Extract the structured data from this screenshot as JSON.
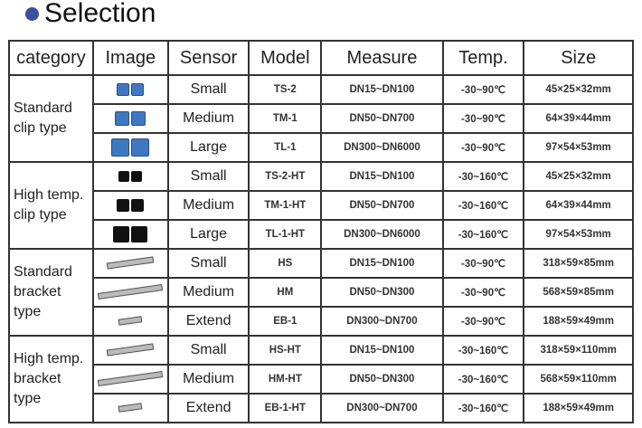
{
  "title": "Selection",
  "accent": "#3a4fa0",
  "headers": [
    "category",
    "Image",
    "Sensor",
    "Model",
    "Measure",
    "Temp.",
    "Size"
  ],
  "groups": [
    {
      "category": "Standard clip type",
      "image_type": "blue-clip-sensor",
      "rows": [
        {
          "sensor": "Small",
          "model": "TS-2",
          "measure": "DN15~DN100",
          "temp": "-30~90℃",
          "size": "45×25×32mm"
        },
        {
          "sensor": "Medium",
          "model": "TM-1",
          "measure": "DN50~DN700",
          "temp": "-30~90℃",
          "size": "64×39×44mm"
        },
        {
          "sensor": "Large",
          "model": "TL-1",
          "measure": "DN300~DN6000",
          "temp": "-30~90℃",
          "size": "97×54×53mm"
        }
      ]
    },
    {
      "category": "High temp. clip type",
      "image_type": "black-clip-sensor",
      "rows": [
        {
          "sensor": "Small",
          "model": "TS-2-HT",
          "measure": "DN15~DN100",
          "temp": "-30~160℃",
          "size": "45×25×32mm"
        },
        {
          "sensor": "Medium",
          "model": "TM-1-HT",
          "measure": "DN50~DN700",
          "temp": "-30~160℃",
          "size": "64×39×44mm"
        },
        {
          "sensor": "Large",
          "model": "TL-1-HT",
          "measure": "DN300~DN6000",
          "temp": "-30~160℃",
          "size": "97×54×53mm"
        }
      ]
    },
    {
      "category": "Standard bracket type",
      "image_type": "bracket-sensor",
      "rows": [
        {
          "sensor": "Small",
          "model": "HS",
          "measure": "DN15~DN100",
          "temp": "-30~90℃",
          "size": "318×59×85mm"
        },
        {
          "sensor": "Medium",
          "model": "HM",
          "measure": "DN50~DN300",
          "temp": "-30~90℃",
          "size": "568×59×85mm"
        },
        {
          "sensor": "Extend",
          "model": "EB-1",
          "measure": "DN300~DN700",
          "temp": "-30~90℃",
          "size": "188×59×49mm"
        }
      ]
    },
    {
      "category": "High temp. bracket type",
      "image_type": "bracket-sensor",
      "rows": [
        {
          "sensor": "Small",
          "model": "HS-HT",
          "measure": "DN15~DN100",
          "temp": "-30~160℃",
          "size": "318×59×110mm"
        },
        {
          "sensor": "Medium",
          "model": "HM-HT",
          "measure": "DN50~DN300",
          "temp": "-30~160℃",
          "size": "568×59×110mm"
        },
        {
          "sensor": "Extend",
          "model": "EB-1-HT",
          "measure": "DN300~DN700",
          "temp": "-30~160℃",
          "size": "188×59×49mm"
        }
      ]
    }
  ]
}
